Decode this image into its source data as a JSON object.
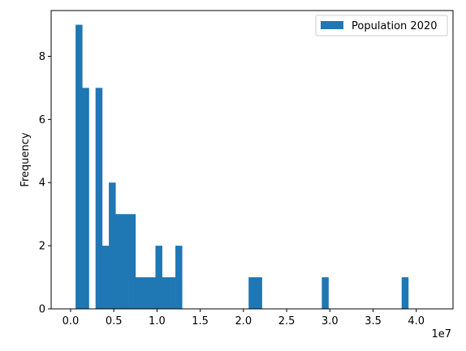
{
  "chart_data": {
    "type": "bar",
    "subtype": "histogram",
    "ylabel": "Frequency",
    "xlabel": "",
    "x_offset_text": "1e7",
    "xlim": [
      -0.225,
      4.425
    ],
    "ylim": [
      0,
      9.45
    ],
    "x_ticks": [
      0.0,
      0.5,
      1.0,
      1.5,
      2.0,
      2.5,
      3.0,
      3.5,
      4.0
    ],
    "x_tick_labels": [
      "0.0",
      "0.5",
      "1.0",
      "1.5",
      "2.0",
      "2.5",
      "3.0",
      "3.5",
      "4.0"
    ],
    "y_ticks": [
      0,
      2,
      4,
      6,
      8
    ],
    "y_tick_labels": [
      "0",
      "2",
      "4",
      "6",
      "8"
    ],
    "bin_start": 0.0577,
    "bin_width": 0.077,
    "counts": [
      9,
      7,
      0,
      7,
      2,
      4,
      3,
      3,
      3,
      1,
      1,
      1,
      2,
      1,
      1,
      2,
      0,
      0,
      0,
      0,
      0,
      0,
      0,
      0,
      0,
      0,
      1,
      1,
      0,
      0,
      0,
      0,
      0,
      0,
      0,
      0,
      0,
      1,
      0,
      0,
      0,
      0,
      0,
      0,
      0,
      0,
      0,
      0,
      0,
      1
    ],
    "series": [
      {
        "name": "Population 2020",
        "color": "#1f77b4"
      }
    ],
    "legend": {
      "position": "upper-right"
    },
    "grid": false
  }
}
